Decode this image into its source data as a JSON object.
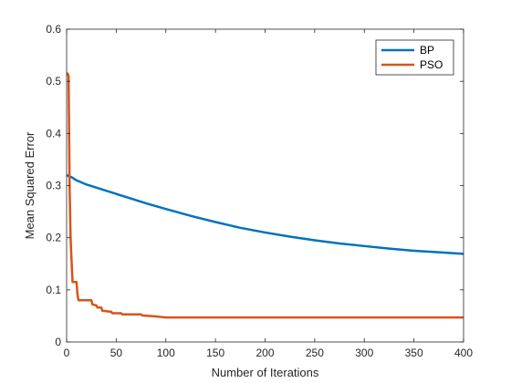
{
  "chart_data": {
    "type": "line",
    "title": "",
    "xlabel": "Number of Iterations",
    "ylabel": "Mean Squared Error",
    "xlim": [
      0,
      400
    ],
    "ylim": [
      0,
      0.6
    ],
    "x_ticks": [
      0,
      50,
      100,
      150,
      200,
      250,
      300,
      350,
      400
    ],
    "x_tick_labels": [
      "0",
      "50",
      "100",
      "150",
      "200",
      "250",
      "300",
      "350",
      "400"
    ],
    "y_ticks": [
      0,
      0.1,
      0.2,
      0.3,
      0.4,
      0.5,
      0.6
    ],
    "y_tick_labels": [
      "0",
      "0.1",
      "0.2",
      "0.3",
      "0.4",
      "0.5",
      "0.6"
    ],
    "grid": false,
    "legend_position": "top-right",
    "series": [
      {
        "name": "BP",
        "color": "#0072BD",
        "x": [
          0,
          5,
          10,
          20,
          40,
          60,
          80,
          100,
          125,
          150,
          175,
          200,
          225,
          250,
          275,
          300,
          325,
          350,
          375,
          400
        ],
        "y": [
          0.32,
          0.316,
          0.31,
          0.302,
          0.29,
          0.278,
          0.266,
          0.255,
          0.242,
          0.23,
          0.219,
          0.21,
          0.202,
          0.195,
          0.189,
          0.184,
          0.179,
          0.175,
          0.172,
          0.169
        ]
      },
      {
        "name": "PSO",
        "color": "#D95319",
        "x": [
          0,
          1,
          2,
          3,
          4,
          5,
          6,
          7,
          8,
          9,
          10,
          11,
          12,
          13,
          20,
          25,
          26,
          30,
          31,
          35,
          36,
          45,
          46,
          55,
          56,
          60,
          75,
          76,
          90,
          95,
          100,
          150,
          200,
          300,
          400
        ],
        "y": [
          0.515,
          0.515,
          0.51,
          0.3,
          0.2,
          0.155,
          0.115,
          0.115,
          0.115,
          0.115,
          0.115,
          0.09,
          0.08,
          0.08,
          0.08,
          0.08,
          0.072,
          0.07,
          0.066,
          0.066,
          0.06,
          0.058,
          0.055,
          0.055,
          0.053,
          0.053,
          0.053,
          0.051,
          0.049,
          0.048,
          0.047,
          0.047,
          0.047,
          0.047,
          0.047
        ]
      }
    ]
  }
}
